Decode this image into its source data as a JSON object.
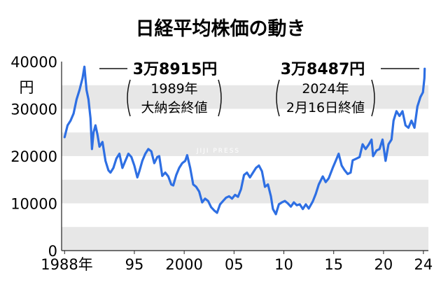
{
  "chart_data": {
    "type": "line",
    "title": "日経平均株価の動き",
    "ylabel": "円",
    "ylim": [
      0,
      40000
    ],
    "xlim": [
      1987.7,
      2024.5
    ],
    "grid": "horizontal bands",
    "y_ticks": [
      "40000",
      "30000",
      "20000",
      "10000",
      "0"
    ],
    "x_ticks": [
      {
        "x": 1988,
        "label": "1988年"
      },
      {
        "x": 1995,
        "label": "95"
      },
      {
        "x": 2000,
        "label": "2000"
      },
      {
        "x": 2005,
        "label": "05"
      },
      {
        "x": 2010,
        "label": "10"
      },
      {
        "x": 2015,
        "label": "15"
      },
      {
        "x": 2020,
        "label": "20"
      },
      {
        "x": 2024,
        "label": "24"
      }
    ],
    "series": [
      {
        "color": "#2e6fe3",
        "x": [
          1988.0,
          1988.3,
          1988.6,
          1988.9,
          1989.2,
          1989.5,
          1989.8,
          1989.99,
          1990.2,
          1990.4,
          1990.6,
          1990.75,
          1990.9,
          1991.1,
          1991.3,
          1991.5,
          1991.8,
          1992.1,
          1992.4,
          1992.6,
          1992.9,
          1993.2,
          1993.5,
          1993.8,
          1994.1,
          1994.4,
          1994.7,
          1995.0,
          1995.3,
          1995.5,
          1995.8,
          1996.1,
          1996.4,
          1996.7,
          1997.0,
          1997.3,
          1997.5,
          1997.8,
          1998.1,
          1998.4,
          1998.7,
          1998.9,
          1999.2,
          1999.5,
          1999.8,
          2000.1,
          2000.3,
          2000.6,
          2000.9,
          2001.2,
          2001.5,
          2001.8,
          2002.1,
          2002.4,
          2002.7,
          2003.0,
          2003.3,
          2003.6,
          2003.9,
          2004.2,
          2004.5,
          2004.8,
          2005.1,
          2005.4,
          2005.7,
          2006.0,
          2006.3,
          2006.6,
          2006.9,
          2007.2,
          2007.5,
          2007.8,
          2008.1,
          2008.4,
          2008.7,
          2008.9,
          2009.2,
          2009.5,
          2009.8,
          2010.1,
          2010.4,
          2010.7,
          2011.0,
          2011.3,
          2011.6,
          2011.9,
          2012.2,
          2012.5,
          2012.9,
          2013.2,
          2013.5,
          2013.9,
          2014.2,
          2014.5,
          2014.9,
          2015.2,
          2015.5,
          2015.8,
          2016.1,
          2016.4,
          2016.7,
          2016.9,
          2017.3,
          2017.6,
          2017.9,
          2018.2,
          2018.5,
          2018.8,
          2018.95,
          2019.3,
          2019.6,
          2019.9,
          2020.2,
          2020.5,
          2020.8,
          2021.0,
          2021.3,
          2021.6,
          2021.9,
          2022.2,
          2022.5,
          2022.8,
          2023.1,
          2023.4,
          2023.7,
          2023.95,
          2024.1,
          2024.13
        ],
        "values": [
          24000,
          26500,
          27500,
          29000,
          32000,
          34000,
          36500,
          38915,
          34000,
          32000,
          28000,
          21500,
          25000,
          26500,
          24500,
          22000,
          23000,
          19000,
          17000,
          16500,
          17500,
          19500,
          20500,
          17500,
          19000,
          20500,
          19800,
          18000,
          15500,
          16800,
          19000,
          20500,
          21500,
          21000,
          18500,
          19800,
          20000,
          15800,
          16500,
          15700,
          14000,
          13800,
          16000,
          17500,
          18500,
          19000,
          20200,
          17500,
          14000,
          13500,
          12500,
          10200,
          11000,
          10500,
          9200,
          8500,
          8000,
          9800,
          10500,
          11200,
          11500,
          11000,
          11800,
          11400,
          13000,
          16000,
          16500,
          15500,
          16500,
          17500,
          18000,
          16800,
          13500,
          14000,
          11500,
          8800,
          7700,
          9800,
          10200,
          10500,
          10000,
          9300,
          10200,
          9600,
          9800,
          8800,
          9800,
          8900,
          10400,
          12000,
          14000,
          15700,
          14500,
          15300,
          17500,
          19000,
          20500,
          18000,
          17000,
          16200,
          16500,
          19100,
          19500,
          19800,
          22500,
          21500,
          22400,
          23500,
          20000,
          21200,
          21500,
          23500,
          19000,
          22500,
          23500,
          27500,
          29500,
          28500,
          29500,
          26500,
          26000,
          27500,
          26000,
          30500,
          32500,
          33500,
          36500,
          38487
        ]
      }
    ],
    "annotations": [
      {
        "value": "3万8915円",
        "note_line1": "1989年",
        "note_line2": "大納会終値"
      },
      {
        "value": "3万8487円",
        "note_line1": "2024年",
        "note_line2": "2月16日終値"
      }
    ],
    "watermark": "JIJI PRESS"
  }
}
